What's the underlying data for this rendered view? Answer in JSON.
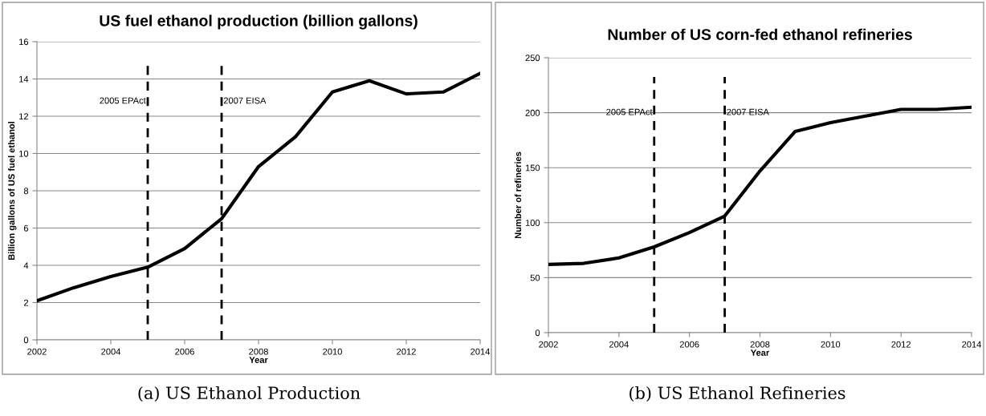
{
  "chart_data": [
    {
      "type": "line",
      "title": "US fuel ethanol production (billion gallons)",
      "xlabel": "Year",
      "ylabel": "Billion gallons of US fuel ethanol",
      "x": [
        2002,
        2003,
        2004,
        2005,
        2006,
        2007,
        2008,
        2009,
        2010,
        2011,
        2012,
        2013,
        2014
      ],
      "values": [
        2.1,
        2.8,
        3.4,
        3.9,
        4.9,
        6.5,
        9.3,
        10.9,
        13.3,
        13.9,
        13.2,
        13.3,
        14.3
      ],
      "color": "#000000",
      "xlim": [
        2002,
        2014
      ],
      "xticks": [
        2002,
        2004,
        2006,
        2008,
        2010,
        2012,
        2014
      ],
      "ylim": [
        0,
        16
      ],
      "yticks": [
        0,
        2,
        4,
        6,
        8,
        10,
        12,
        14,
        16
      ],
      "grid": "y",
      "ref_lines": [
        {
          "axis": "x",
          "value": 2005,
          "label": "2005 EPAct",
          "line_style": "dashed",
          "color": "#000000"
        },
        {
          "axis": "x",
          "value": 2007,
          "label": "2007 EISA",
          "line_style": "dashed",
          "color": "#000000"
        }
      ],
      "annotations": [
        "(a) US Ethanol Production"
      ]
    },
    {
      "type": "line",
      "title": "Number of US corn-fed ethanol refineries",
      "xlabel": "Year",
      "ylabel": "Number of refineries",
      "x": [
        2002,
        2003,
        2004,
        2005,
        2006,
        2007,
        2008,
        2009,
        2010,
        2011,
        2012,
        2013,
        2014
      ],
      "values": [
        62,
        63,
        68,
        78,
        91,
        106,
        147,
        183,
        191,
        197,
        203,
        203,
        205
      ],
      "color": "#000000",
      "xlim": [
        2002,
        2014
      ],
      "xticks": [
        2002,
        2004,
        2006,
        2008,
        2010,
        2012,
        2014
      ],
      "ylim": [
        0,
        250
      ],
      "yticks": [
        0,
        50,
        100,
        150,
        200,
        250
      ],
      "grid": "y",
      "ref_lines": [
        {
          "axis": "x",
          "value": 2005,
          "label": "2005 EPAct",
          "line_style": "dashed",
          "color": "#000000"
        },
        {
          "axis": "x",
          "value": 2007,
          "label": "2007 EISA",
          "line_style": "dashed",
          "color": "#000000"
        }
      ],
      "annotations": [
        "(b) US Ethanol Refineries"
      ]
    }
  ]
}
